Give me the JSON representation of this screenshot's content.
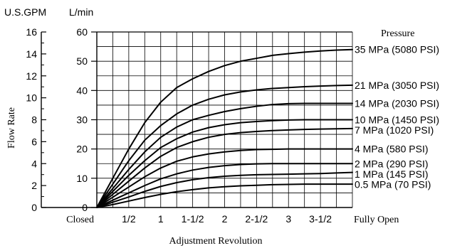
{
  "chart_data": {
    "type": "line",
    "ylabel": "Flow Rate",
    "xlabel": "Adjustment Revolution",
    "y_unit_left": "U.S.GPM",
    "y_unit_right": "L/min",
    "legend_title": "Pressure",
    "x_ticks": [
      {
        "x": 0,
        "label": "Closed"
      },
      {
        "x": 0.5,
        "label": "1/2"
      },
      {
        "x": 1,
        "label": "1"
      },
      {
        "x": 1.5,
        "label": "1-1/2"
      },
      {
        "x": 2,
        "label": "2"
      },
      {
        "x": 2.5,
        "label": "2-1/2"
      },
      {
        "x": 3,
        "label": "3"
      },
      {
        "x": 3.5,
        "label": "3-1/2"
      },
      {
        "x": 4,
        "label": "Fully Open"
      }
    ],
    "xlim": [
      0,
      4
    ],
    "y_gpm_ticks": [
      0,
      2,
      4,
      6,
      8,
      10,
      12,
      14,
      16
    ],
    "ylim_gpm": [
      0,
      16
    ],
    "y_lmin_ticks": [
      0,
      10,
      20,
      30,
      40,
      50,
      60
    ],
    "ylim_lmin": [
      0,
      60
    ],
    "grid": true,
    "series_units": "L/min",
    "x": [
      0,
      0.25,
      0.5,
      0.75,
      1,
      1.25,
      1.5,
      1.75,
      2,
      2.25,
      2.5,
      2.75,
      3,
      3.25,
      3.5,
      3.75,
      4
    ],
    "series": [
      {
        "name": "35 MPa (5080 PSI)",
        "values": [
          0,
          10,
          20,
          29,
          36,
          41,
          44,
          46.5,
          48.5,
          50,
          51,
          52,
          52.6,
          53.1,
          53.5,
          53.8,
          54
        ]
      },
      {
        "name": "21 MPa (3050 PSI)",
        "values": [
          0,
          8,
          16,
          23,
          28,
          32,
          35,
          37,
          38.5,
          39.5,
          40.2,
          40.7,
          41,
          41.3,
          41.5,
          41.7,
          41.8
        ]
      },
      {
        "name": "14 MPa (2030 PSI)",
        "values": [
          0,
          6.5,
          13,
          19,
          24,
          27.5,
          30,
          31.5,
          32.8,
          33.8,
          34.6,
          35.2,
          35.5,
          35.6,
          35.6,
          35.6,
          35.6
        ]
      },
      {
        "name": "10 MPa (1450 PSI)",
        "values": [
          0,
          5.5,
          11,
          16,
          20.5,
          23.5,
          25.8,
          27.3,
          28.3,
          29,
          29.4,
          29.7,
          29.9,
          30,
          30,
          30,
          30
        ]
      },
      {
        "name": "7 MPa (1020 PSI)",
        "values": [
          0,
          4.5,
          9,
          13.5,
          17.5,
          20.5,
          22.5,
          24,
          25,
          25.6,
          26,
          26.3,
          26.5,
          26.7,
          26.8,
          26.9,
          27
        ]
      },
      {
        "name": "4 MPa (580 PSI)",
        "values": [
          0,
          3.5,
          7,
          10.5,
          13.5,
          15.8,
          17.3,
          18.3,
          19,
          19.5,
          19.8,
          19.9,
          20,
          20,
          20,
          20,
          20
        ]
      },
      {
        "name": "2 MPa (290 PSI)",
        "values": [
          0,
          2.5,
          5,
          7.5,
          9.8,
          11.5,
          12.8,
          13.7,
          14.3,
          14.7,
          14.9,
          15,
          15,
          15,
          15,
          15,
          15
        ]
      },
      {
        "name": "1 MPa (145 PSI)",
        "values": [
          0,
          1.8,
          3.6,
          5.5,
          7.2,
          8.5,
          9.5,
          10.2,
          10.7,
          11,
          11.2,
          11.3,
          11.4,
          11.5,
          11.6,
          11.8,
          12
        ]
      },
      {
        "name": "0.5 MPa (70 PSI)",
        "values": [
          0,
          1,
          2.2,
          3.4,
          4.5,
          5.4,
          6.1,
          6.7,
          7.1,
          7.4,
          7.6,
          7.8,
          7.9,
          8,
          8,
          8,
          8
        ]
      }
    ],
    "line_color": "#000000"
  }
}
